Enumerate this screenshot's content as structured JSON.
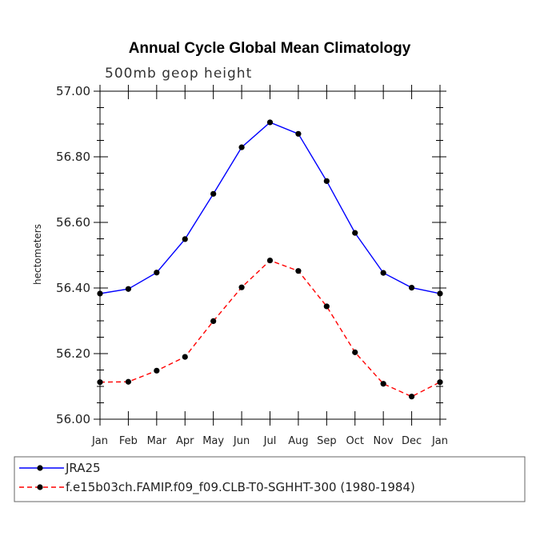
{
  "chart_data": {
    "type": "line",
    "title": "Annual Cycle Global Mean Climatology",
    "subtitle": "500mb geop height",
    "ylabel": "hectometers",
    "xlabel": "",
    "categories": [
      "Jan",
      "Feb",
      "Mar",
      "Apr",
      "May",
      "Jun",
      "Jul",
      "Aug",
      "Sep",
      "Oct",
      "Nov",
      "Dec",
      "Jan"
    ],
    "ylim": [
      56.0,
      57.0
    ],
    "yticks": [
      "56.00",
      "56.20",
      "56.40",
      "56.60",
      "56.80",
      "57.00"
    ],
    "series": [
      {
        "name": "JRA25",
        "color": "#0000ff",
        "dash": "solid",
        "values": [
          56.383,
          56.397,
          56.447,
          56.549,
          56.687,
          56.829,
          56.905,
          56.87,
          56.726,
          56.568,
          56.446,
          56.401,
          56.383
        ]
      },
      {
        "name": "f.e15b03ch.FAMIP.f09_f09.CLB-T0-SGHHT-300 (1980-1984)",
        "color": "#ff0000",
        "dash": "dashed",
        "values": [
          56.113,
          56.114,
          56.148,
          56.19,
          56.299,
          56.402,
          56.484,
          56.452,
          56.344,
          56.204,
          56.108,
          56.069,
          56.113
        ]
      }
    ],
    "legend": "bottom",
    "grid": false
  }
}
